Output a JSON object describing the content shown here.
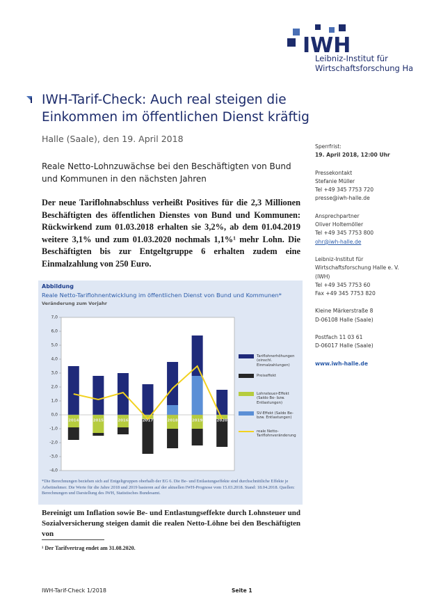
{
  "header": {
    "logo": "IWH",
    "institute": [
      "Leibniz-Institut für",
      "Wirtschaftsforschung Halle"
    ]
  },
  "title": [
    "IWH-Tarif-Check: Auch real steigen die",
    "Einkommen im öffentlichen Dienst kräftig"
  ],
  "dateline": "Halle (Saale), den 19. April 2018",
  "subtitle": [
    "Reale Netto-Lohnzuwächse bei den Beschäftigten von Bund",
    "und Kommunen in den nächsten Jahren"
  ],
  "lead": "Der neue Tariflohnabschluss verheißt Positives für die 2,3 Millionen Beschäftigten des öffentlichen Dienstes von Bund und Kommunen: Rückwirkend zum 01.03.2018 erhalten sie 3,2%, ab dem 01.04.2019 weitere 3,1% und zum 01.03.2020 nochmals 1,1%¹ mehr Lohn. Die Beschäftigten bis zur Entgeltgruppe 6 erhalten zudem eine Einmalzahlung von 250 Euro.",
  "sidebar": [
    [
      "Sperrfrist:",
      "19. April 2018, 12:00 Uhr"
    ],
    [
      "Pressekontakt",
      "Stefanie Müller",
      "Tel +49 345 7753 720",
      "presse@iwh-halle.de"
    ],
    [
      "Ansprechpartner",
      "Oliver Holtemöller",
      "Tel +49 345 7753 800",
      "ohr@iwh-halle.de"
    ],
    [
      "Leibniz-Institut für",
      "Wirtschaftsforschung Halle e. V.",
      "(IWH)",
      "Tel +49 345 7753 60",
      "Fax +49 345 7753 820"
    ],
    [
      "Kleine Märkerstraße 8",
      "D-06108 Halle (Saale)"
    ],
    [
      "Postfach 11 03 61",
      "D-06017 Halle (Saale)"
    ],
    [
      "www.iwh-halle.de"
    ]
  ],
  "figure": {
    "label": "Abbildung",
    "title": "Reale Netto-Tariflohnentwicklung im öffentlichen Dienst von Bund und Kommunen*",
    "unit": "Veränderung zum Vorjahr",
    "note": "*Die Berechnungen beziehen sich auf Entgeltgruppen oberhalb der EG 6. Die Be- und Entlastungseffekte sind durchschnittliche Effekte je Arbeitnehmer. Die Werte für die Jahre 2018 und 2019 basieren auf der aktuellen IWH-Prognose vom 15.03.2018. Stand: 18.04.2018. Quellen: Berechnungen und Darstellung des IWH, Statistisches Bundesamt.",
    "chart_data": {
      "type": "bar",
      "categories": [
        "2014",
        "2015",
        "2016",
        "2017",
        "2018",
        "2019",
        "2020"
      ],
      "series": [
        {
          "name": "Tariflohnerhöhungen (einschl. Einmalzahlungen)",
          "color": "#1f2a7a",
          "values": [
            3.5,
            2.8,
            3.0,
            2.2,
            3.1,
            2.9,
            1.8
          ]
        },
        {
          "name": "Preiseffekt",
          "color": "#262626",
          "values": [
            -0.9,
            -0.2,
            -0.5,
            -2.5,
            -1.4,
            -1.2,
            -2.0
          ]
        },
        {
          "name": "Lohnsteuer-Effekt (Saldo Be- bzw. Entlastungen)",
          "color": "#b6cc3e",
          "values": [
            -0.9,
            -1.3,
            -0.9,
            -0.3,
            -1.0,
            -1.0,
            -0.3
          ]
        },
        {
          "name": "SV-Effekt (Saldo Be- bzw. Entlastungen)",
          "color": "#5b8fd6",
          "values": [
            0,
            0,
            0,
            0,
            0.7,
            2.8,
            0
          ]
        },
        {
          "name": "reale Netto-Tariflohnveränderung",
          "type": "line",
          "color": "#f2d11f",
          "values": [
            1.5,
            1.1,
            1.6,
            -0.3,
            1.9,
            3.5,
            -0.3
          ]
        }
      ],
      "ylim": [
        -4,
        7
      ],
      "yticks": [
        {
          "value": -4,
          "label": "-4,0"
        },
        {
          "value": -3,
          "label": "-3,0"
        },
        {
          "value": -2,
          "label": "-2,0"
        },
        {
          "value": -1,
          "label": "-1,0"
        },
        {
          "value": 0,
          "label": "0,0"
        },
        {
          "value": 1,
          "label": "1,0"
        },
        {
          "value": 2,
          "label": "2,0"
        },
        {
          "value": 3,
          "label": "3,0"
        },
        {
          "value": 4,
          "label": "4,0"
        },
        {
          "value": 5,
          "label": "5,0"
        },
        {
          "value": 6,
          "label": "6,0"
        },
        {
          "value": 7,
          "label": "7,0"
        }
      ],
      "grid": false
    }
  },
  "body": "Bereinigt um Inflation sowie Be- und Entlastungseffekte durch Lohnsteuer und Sozialversicherung steigen damit die realen Netto-Löhne bei den Beschäftigten von",
  "footnote": "¹ Der Tarifvertrag endet am 31.08.2020.",
  "footer": {
    "left": "IWH-Tarif-Check 1/2018",
    "page": "Seite 1"
  }
}
